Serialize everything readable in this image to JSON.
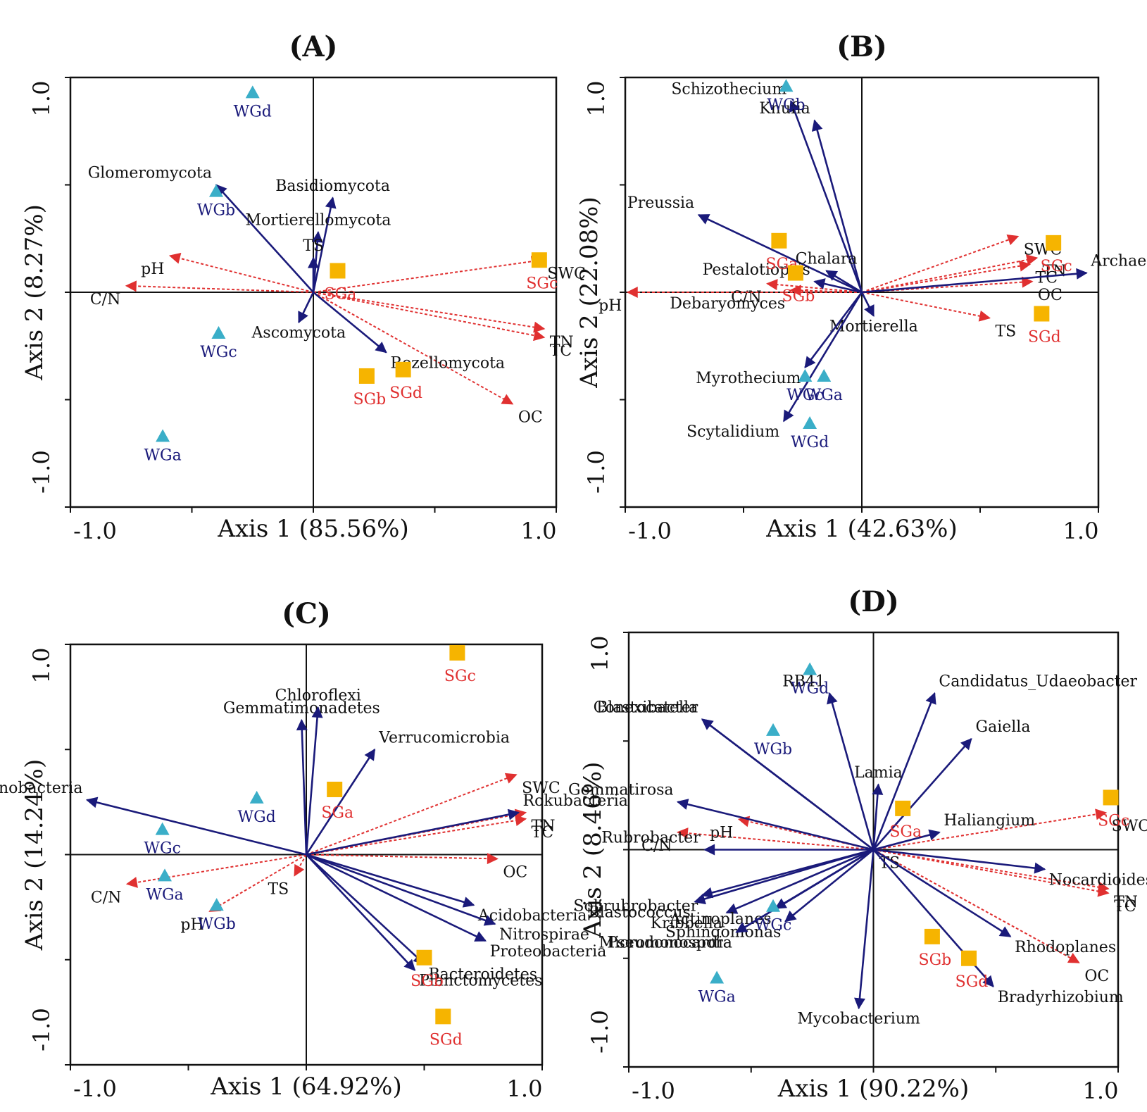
{
  "chart_data": [
    {
      "type": "scatter",
      "title": "(A)",
      "xlabel": "Axis 1 (85.56%)",
      "ylabel": "Axis 2 (8.27%)",
      "xlim": [
        -1.0,
        1.0
      ],
      "ylim": [
        -1.0,
        1.0
      ],
      "xticks": [
        "-1.0",
        "1.0"
      ],
      "yticks": [
        "-1.0",
        "1.0"
      ],
      "colors": {
        "taxa": "#1a1a7a",
        "env": "#e03030",
        "wg": "#3aaec8",
        "sg": "#f6b400"
      },
      "taxa_arrows": [
        {
          "name": "Glomeromycota",
          "x": -0.4,
          "y": 0.5
        },
        {
          "name": "Basidiomycota",
          "x": 0.08,
          "y": 0.44
        },
        {
          "name": "Mortierellomycota",
          "x": 0.02,
          "y": 0.28
        },
        {
          "name": "TS",
          "x": 0.0,
          "y": 0.16
        },
        {
          "name": "Ascomycota",
          "x": -0.06,
          "y": -0.14
        },
        {
          "name": "Rozellomycota",
          "x": 0.3,
          "y": -0.28
        }
      ],
      "env_arrows": [
        {
          "name": "C/N",
          "x": -0.77,
          "y": 0.03
        },
        {
          "name": "pH",
          "x": -0.59,
          "y": 0.17
        },
        {
          "name": "SWC",
          "x": 0.94,
          "y": 0.15
        },
        {
          "name": "TN",
          "x": 0.95,
          "y": -0.17
        },
        {
          "name": "TC",
          "x": 0.95,
          "y": -0.21
        },
        {
          "name": "OC",
          "x": 0.82,
          "y": -0.52
        }
      ],
      "samples": [
        {
          "name": "WGd",
          "group": "WG",
          "x": -0.25,
          "y": 0.93
        },
        {
          "name": "WGb",
          "group": "WG",
          "x": -0.4,
          "y": 0.47
        },
        {
          "name": "WGc",
          "group": "WG",
          "x": -0.39,
          "y": -0.19
        },
        {
          "name": "WGa",
          "group": "WG",
          "x": -0.62,
          "y": -0.67
        },
        {
          "name": "SGa",
          "group": "SG",
          "x": 0.1,
          "y": 0.1
        },
        {
          "name": "SGc",
          "group": "SG",
          "x": 0.93,
          "y": 0.15
        },
        {
          "name": "SGb",
          "group": "SG",
          "x": 0.22,
          "y": -0.39
        },
        {
          "name": "SGd",
          "group": "SG",
          "x": 0.37,
          "y": -0.36
        }
      ]
    },
    {
      "type": "scatter",
      "title": "(B)",
      "xlabel": "Axis 1 (42.63%)",
      "ylabel": "Axis 2 (22.08%)",
      "xlim": [
        -1.0,
        1.0
      ],
      "ylim": [
        -1.0,
        1.0
      ],
      "xticks": [
        "-1.0",
        "1.0"
      ],
      "yticks": [
        "-1.0",
        "1.0"
      ],
      "colors": {
        "taxa": "#1a1a7a",
        "env": "#e03030",
        "wg": "#3aaec8",
        "sg": "#f6b400"
      },
      "taxa_arrows": [
        {
          "name": "Schizothecium",
          "x": -0.3,
          "y": 0.89
        },
        {
          "name": "Knufia",
          "x": -0.2,
          "y": 0.8
        },
        {
          "name": "Preussia",
          "x": -0.69,
          "y": 0.36
        },
        {
          "name": "Chalara",
          "x": -0.15,
          "y": 0.1
        },
        {
          "name": "Pestalotiopsis",
          "x": -0.2,
          "y": 0.05
        },
        {
          "name": "Archaeorhizomyces",
          "x": 0.95,
          "y": 0.09
        },
        {
          "name": "Mortierella",
          "x": 0.05,
          "y": -0.11
        },
        {
          "name": "Myrothecium",
          "x": -0.24,
          "y": -0.35
        },
        {
          "name": "Scytalidium",
          "x": -0.33,
          "y": -0.6
        }
      ],
      "env_arrows": [
        {
          "name": "SWC",
          "x": 0.66,
          "y": 0.26
        },
        {
          "name": "TC",
          "x": 0.71,
          "y": 0.13
        },
        {
          "name": "TN",
          "x": 0.74,
          "y": 0.16
        },
        {
          "name": "OC",
          "x": 0.72,
          "y": 0.05
        },
        {
          "name": "TS",
          "x": 0.54,
          "y": -0.12
        },
        {
          "name": "C/N",
          "x": -0.4,
          "y": 0.04
        },
        {
          "name": "pH",
          "x": -0.99,
          "y": 0.0
        },
        {
          "name": "Debaryomyces",
          "x": -0.3,
          "y": 0.01
        }
      ],
      "samples": [
        {
          "name": "WGb",
          "group": "WG",
          "x": -0.32,
          "y": 0.96
        },
        {
          "name": "WGa",
          "group": "WG",
          "x": -0.16,
          "y": -0.39
        },
        {
          "name": "WGc",
          "group": "WG",
          "x": -0.24,
          "y": -0.39
        },
        {
          "name": "WGd",
          "group": "WG",
          "x": -0.22,
          "y": -0.61
        },
        {
          "name": "SGa",
          "group": "SG",
          "x": -0.35,
          "y": 0.24
        },
        {
          "name": "SGc",
          "group": "SG",
          "x": 0.81,
          "y": 0.23
        },
        {
          "name": "SGb",
          "group": "SG",
          "x": -0.28,
          "y": 0.09
        },
        {
          "name": "SGd",
          "group": "SG",
          "x": 0.76,
          "y": -0.1
        }
      ]
    },
    {
      "type": "scatter",
      "title": "(C)",
      "xlabel": "Axis 1 (64.92%)",
      "ylabel": "Axis 2 (14.24%)",
      "xlim": [
        -1.0,
        1.0
      ],
      "ylim": [
        -1.0,
        1.0
      ],
      "xticks": [
        "-1.0",
        "1.0"
      ],
      "yticks": [
        "-1.0",
        "1.0"
      ],
      "colors": {
        "taxa": "#1a1a7a",
        "env": "#e03030",
        "wg": "#3aaec8",
        "sg": "#f6b400"
      },
      "taxa_arrows": [
        {
          "name": "Gemmatimonadetes",
          "x": -0.02,
          "y": 0.64
        },
        {
          "name": "Chloroflexi",
          "x": 0.05,
          "y": 0.7
        },
        {
          "name": "Verrucomicrobia",
          "x": 0.29,
          "y": 0.5
        },
        {
          "name": "Actinobacteria",
          "x": -0.93,
          "y": 0.26
        },
        {
          "name": "Rokubacteria",
          "x": 0.9,
          "y": 0.2
        },
        {
          "name": "Acidobacteria",
          "x": 0.71,
          "y": -0.24
        },
        {
          "name": "Nitrospirae",
          "x": 0.8,
          "y": -0.33
        },
        {
          "name": "Proteobacteria",
          "x": 0.76,
          "y": -0.41
        },
        {
          "name": "Bacteroidetes",
          "x": 0.5,
          "y": -0.52
        },
        {
          "name": "Planctomycetes",
          "x": 0.46,
          "y": -0.55
        }
      ],
      "env_arrows": [
        {
          "name": "SWC",
          "x": 0.89,
          "y": 0.38
        },
        {
          "name": "TN",
          "x": 0.93,
          "y": 0.2
        },
        {
          "name": "TC",
          "x": 0.93,
          "y": 0.17
        },
        {
          "name": "OC",
          "x": 0.81,
          "y": -0.02
        },
        {
          "name": "TS",
          "x": -0.05,
          "y": -0.1
        },
        {
          "name": "C/N",
          "x": -0.76,
          "y": -0.14
        },
        {
          "name": "pH",
          "x": -0.41,
          "y": -0.27
        }
      ],
      "samples": [
        {
          "name": "WGd",
          "group": "WG",
          "x": -0.21,
          "y": 0.27
        },
        {
          "name": "WGc",
          "group": "WG",
          "x": -0.61,
          "y": 0.12
        },
        {
          "name": "WGa",
          "group": "WG",
          "x": -0.6,
          "y": -0.1
        },
        {
          "name": "WGb",
          "group": "WG",
          "x": -0.38,
          "y": -0.24
        },
        {
          "name": "SGa",
          "group": "SG",
          "x": 0.12,
          "y": 0.31
        },
        {
          "name": "SGc",
          "group": "SG",
          "x": 0.64,
          "y": 0.96
        },
        {
          "name": "SGb",
          "group": "SG",
          "x": 0.5,
          "y": -0.49
        },
        {
          "name": "SGd",
          "group": "SG",
          "x": 0.58,
          "y": -0.77
        }
      ]
    },
    {
      "type": "scatter",
      "title": "(D)",
      "xlabel": "Axis 1 (90.22%)",
      "ylabel": "Axis 2 (8.46%)",
      "xlim": [
        -1.0,
        1.0
      ],
      "ylim": [
        -1.0,
        1.0
      ],
      "xticks": [
        "-1.0",
        "1.0"
      ],
      "yticks": [
        "-1.0",
        "1.0"
      ],
      "colors": {
        "taxa": "#1a1a7a",
        "env": "#e03030",
        "wg": "#3aaec8",
        "sg": "#f6b400"
      },
      "taxa_arrows": [
        {
          "name": "RB41",
          "x": -0.18,
          "y": 0.72
        },
        {
          "name": "Candidatus_Udaeobacter",
          "x": 0.25,
          "y": 0.72
        },
        {
          "name": "Blastocatella",
          "x": -0.7,
          "y": 0.6
        },
        {
          "name": "Conexibacter",
          "x": -0.7,
          "y": 0.6
        },
        {
          "name": "Gaiella",
          "x": 0.4,
          "y": 0.51
        },
        {
          "name": "Lamia",
          "x": 0.02,
          "y": 0.3
        },
        {
          "name": "Gemmatirosa",
          "x": -0.8,
          "y": 0.22
        },
        {
          "name": "Haliangium",
          "x": 0.27,
          "y": 0.08
        },
        {
          "name": "Rubrobacter",
          "x": -0.69,
          "y": 0.0
        },
        {
          "name": "Solirubrobacter",
          "x": -0.7,
          "y": -0.21
        },
        {
          "name": "Blastococcus",
          "x": -0.73,
          "y": -0.24
        },
        {
          "name": "Kribbella",
          "x": -0.6,
          "y": -0.29
        },
        {
          "name": "Actinoplanes",
          "x": -0.4,
          "y": -0.27
        },
        {
          "name": "Micromonospora",
          "x": -0.56,
          "y": -0.38
        },
        {
          "name": "Sphingomonas",
          "x": -0.36,
          "y": -0.33
        },
        {
          "name": "Pseudonocardia",
          "x": -0.56,
          "y": -0.38
        },
        {
          "name": "Nocardioides",
          "x": 0.7,
          "y": -0.09
        },
        {
          "name": "Rhodoplanes",
          "x": 0.56,
          "y": -0.4
        },
        {
          "name": "Bradyrhizobium",
          "x": 0.49,
          "y": -0.63
        },
        {
          "name": "Mycobacterium",
          "x": -0.06,
          "y": -0.73
        }
      ],
      "env_arrows": [
        {
          "name": "SWC",
          "x": 0.95,
          "y": 0.17
        },
        {
          "name": "TN",
          "x": 0.96,
          "y": -0.18
        },
        {
          "name": "TC",
          "x": 0.96,
          "y": -0.2
        },
        {
          "name": "OC",
          "x": 0.84,
          "y": -0.52
        },
        {
          "name": "C/N",
          "x": -0.8,
          "y": 0.08
        },
        {
          "name": "pH",
          "x": -0.55,
          "y": 0.14
        },
        {
          "name": "TS",
          "x": 0.0,
          "y": 0.0
        }
      ],
      "samples": [
        {
          "name": "WGd",
          "group": "WG",
          "x": -0.26,
          "y": 0.83
        },
        {
          "name": "WGb",
          "group": "WG",
          "x": -0.41,
          "y": 0.55
        },
        {
          "name": "WGc",
          "group": "WG",
          "x": -0.41,
          "y": -0.26
        },
        {
          "name": "WGa",
          "group": "WG",
          "x": -0.64,
          "y": -0.59
        },
        {
          "name": "SGa",
          "group": "SG",
          "x": 0.12,
          "y": 0.19
        },
        {
          "name": "SGc",
          "group": "SG",
          "x": 0.97,
          "y": 0.24
        },
        {
          "name": "SGb",
          "group": "SG",
          "x": 0.24,
          "y": -0.4
        },
        {
          "name": "SGd",
          "group": "SG",
          "x": 0.39,
          "y": -0.5
        }
      ]
    }
  ]
}
